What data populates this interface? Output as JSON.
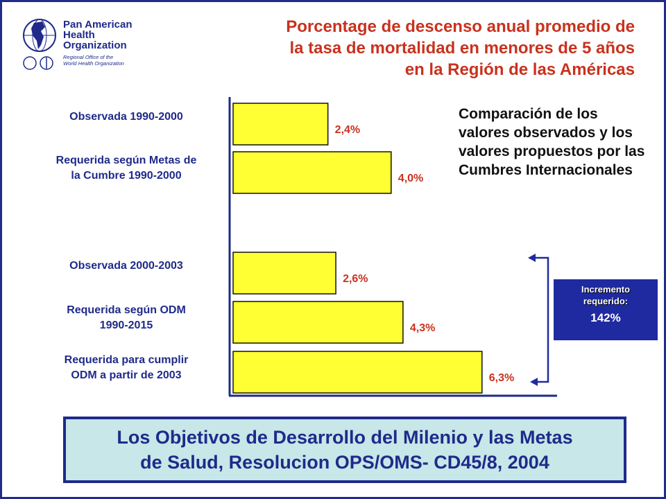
{
  "header": {
    "title_lines": [
      "Porcentage de descenso anual promedio de",
      "la tasa de mortalidad en menores de 5 años",
      "en la Región de las Américas"
    ],
    "logo": {
      "name_lines": [
        "Pan American",
        "Health",
        "Organization"
      ],
      "subtitle_lines": [
        "Regional Office of the",
        "World Health Organization"
      ]
    }
  },
  "chart_data": {
    "type": "bar",
    "orientation": "horizontal",
    "categories": [
      "Observada 1990-2000",
      "Requerida según Metas de la Cumbre 1990-2000",
      "Observada 2000-2003",
      "Requerida según ODM 1990-2015",
      "Requerida para cumplir ODM a partir de 2003"
    ],
    "category_label_lines": [
      [
        "Observada 1990-2000"
      ],
      [
        "Requerida según Metas de",
        "la Cumbre 1990-2000"
      ],
      [
        "Observada 2000-2003"
      ],
      [
        "Requerida según ODM",
        "1990-2015"
      ],
      [
        "Requerida para cumplir",
        "ODM a partir de 2003"
      ]
    ],
    "values": [
      2.4,
      4.0,
      2.6,
      4.3,
      6.3
    ],
    "value_labels": [
      "2,4%",
      "4,0%",
      "2,6%",
      "4,3%",
      "6,3%"
    ],
    "xlim": [
      0,
      8.2
    ],
    "bar_color": "#ffff33",
    "label_color": "#c8321e",
    "axis_color": "#1f2a8a",
    "grid": false
  },
  "side_note": "Comparación de los valores observados y los valores propuestos por las Cumbres Internacionales",
  "increment": {
    "label": "Incremento requerido:",
    "value": "142%",
    "from_category": 2,
    "to_category": 4
  },
  "footer": {
    "lines": [
      "Los Objetivos de Desarrollo del Milenio y las Metas",
      "de Salud, Resolucion OPS/OMS- CD45/8, 2004"
    ]
  }
}
